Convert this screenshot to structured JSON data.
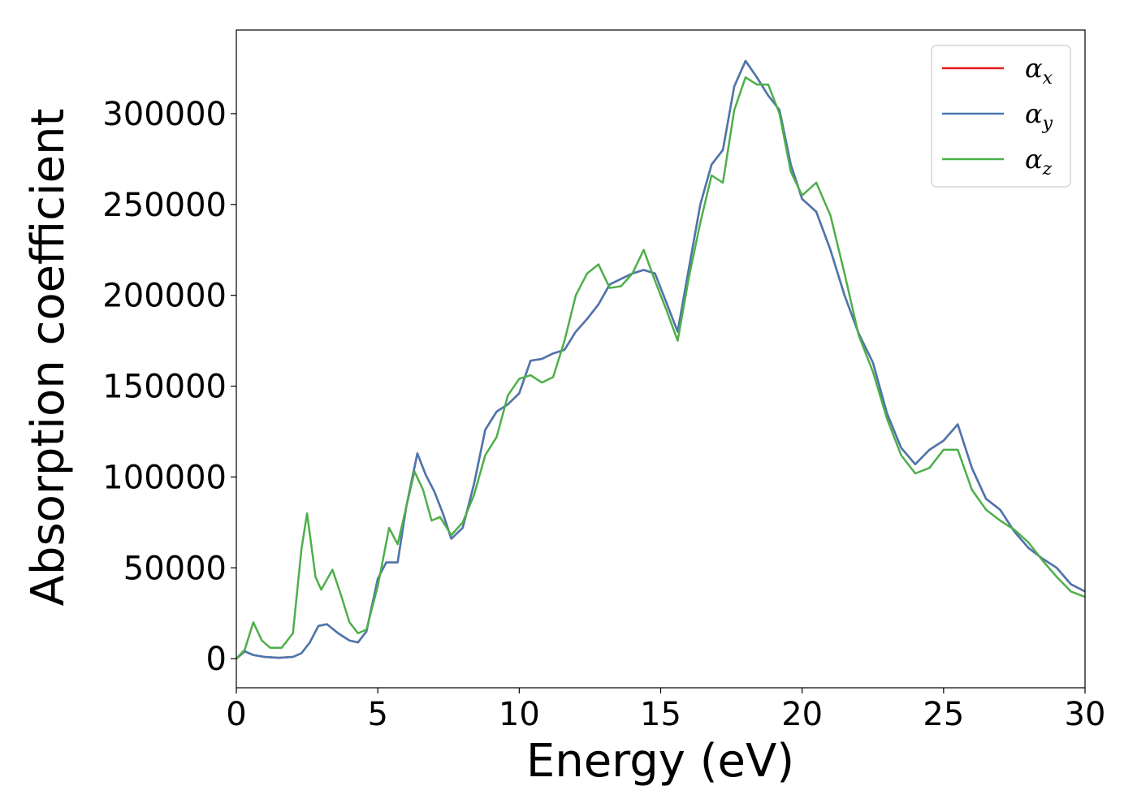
{
  "chart_data": {
    "type": "line",
    "xlabel": "Energy (eV)",
    "ylabel": "Absorption coefficient",
    "xlim": [
      0,
      30
    ],
    "ylim": [
      -16000,
      346000
    ],
    "xticks": [
      0,
      5,
      10,
      15,
      20,
      25,
      30
    ],
    "yticks": [
      0,
      50000,
      100000,
      150000,
      200000,
      250000,
      300000
    ],
    "grid": false,
    "legend_position": "top-right",
    "series": [
      {
        "name": "α",
        "subscript": "x",
        "color": "#e41a1c",
        "x": [
          0,
          0.3,
          0.6,
          1.0,
          1.5,
          2.0,
          2.3,
          2.6,
          2.9,
          3.2,
          3.6,
          4.0,
          4.3,
          4.6,
          5.0,
          5.3,
          5.7,
          6.0,
          6.4,
          6.7,
          7.0,
          7.3,
          7.6,
          8.0,
          8.4,
          8.8,
          9.2,
          9.6,
          10.0,
          10.4,
          10.8,
          11.2,
          11.6,
          12.0,
          12.4,
          12.8,
          13.2,
          13.6,
          14.0,
          14.4,
          14.8,
          15.2,
          15.6,
          16.0,
          16.4,
          16.8,
          17.2,
          17.6,
          18.0,
          18.4,
          18.8,
          19.2,
          19.6,
          20.0,
          20.5,
          21.0,
          21.5,
          22.0,
          22.5,
          23.0,
          23.5,
          24.0,
          24.5,
          25.0,
          25.5,
          26.0,
          26.5,
          27.0,
          27.5,
          28.0,
          28.5,
          29.0,
          29.5,
          30.0
        ],
        "y": [
          0,
          4000,
          2000,
          1000,
          500,
          1000,
          3000,
          9000,
          18000,
          19000,
          14000,
          10000,
          9000,
          15000,
          44000,
          53000,
          53000,
          83000,
          113000,
          101000,
          92000,
          80000,
          66000,
          72000,
          96000,
          126000,
          136000,
          140000,
          146000,
          164000,
          165000,
          168000,
          170000,
          180000,
          187000,
          195000,
          206000,
          209000,
          212000,
          214000,
          212000,
          196000,
          180000,
          215000,
          250000,
          272000,
          280000,
          315000,
          329000,
          320000,
          310000,
          302000,
          272000,
          253000,
          246000,
          225000,
          200000,
          179000,
          163000,
          135000,
          116000,
          107000,
          115000,
          120000,
          129000,
          105000,
          88000,
          82000,
          70000,
          61000,
          55000,
          50000,
          41000,
          37000
        ]
      },
      {
        "name": "α",
        "subscript": "y",
        "color": "#4878b0",
        "x": [
          0,
          0.3,
          0.6,
          1.0,
          1.5,
          2.0,
          2.3,
          2.6,
          2.9,
          3.2,
          3.6,
          4.0,
          4.3,
          4.6,
          5.0,
          5.3,
          5.7,
          6.0,
          6.4,
          6.7,
          7.0,
          7.3,
          7.6,
          8.0,
          8.4,
          8.8,
          9.2,
          9.6,
          10.0,
          10.4,
          10.8,
          11.2,
          11.6,
          12.0,
          12.4,
          12.8,
          13.2,
          13.6,
          14.0,
          14.4,
          14.8,
          15.2,
          15.6,
          16.0,
          16.4,
          16.8,
          17.2,
          17.6,
          18.0,
          18.4,
          18.8,
          19.2,
          19.6,
          20.0,
          20.5,
          21.0,
          21.5,
          22.0,
          22.5,
          23.0,
          23.5,
          24.0,
          24.5,
          25.0,
          25.5,
          26.0,
          26.5,
          27.0,
          27.5,
          28.0,
          28.5,
          29.0,
          29.5,
          30.0
        ],
        "y": [
          0,
          4000,
          2000,
          1000,
          500,
          1000,
          3000,
          9000,
          18000,
          19000,
          14000,
          10000,
          9000,
          15000,
          44000,
          53000,
          53000,
          83000,
          113000,
          101000,
          92000,
          80000,
          66000,
          72000,
          96000,
          126000,
          136000,
          140000,
          146000,
          164000,
          165000,
          168000,
          170000,
          180000,
          187000,
          195000,
          206000,
          209000,
          212000,
          214000,
          212000,
          196000,
          180000,
          215000,
          250000,
          272000,
          280000,
          315000,
          329000,
          320000,
          310000,
          302000,
          272000,
          253000,
          246000,
          225000,
          200000,
          179000,
          163000,
          135000,
          116000,
          107000,
          115000,
          120000,
          129000,
          105000,
          88000,
          82000,
          70000,
          61000,
          55000,
          50000,
          41000,
          37000
        ]
      },
      {
        "name": "α",
        "subscript": "z",
        "color": "#4daf4a",
        "x": [
          0,
          0.3,
          0.6,
          0.9,
          1.2,
          1.6,
          2.0,
          2.3,
          2.5,
          2.8,
          3.0,
          3.4,
          3.7,
          4.0,
          4.3,
          4.6,
          5.0,
          5.4,
          5.7,
          6.0,
          6.3,
          6.6,
          6.9,
          7.2,
          7.6,
          8.0,
          8.4,
          8.8,
          9.2,
          9.6,
          10.0,
          10.4,
          10.8,
          11.2,
          11.6,
          12.0,
          12.4,
          12.8,
          13.2,
          13.6,
          14.0,
          14.4,
          14.8,
          15.2,
          15.6,
          16.0,
          16.4,
          16.8,
          17.2,
          17.6,
          18.0,
          18.4,
          18.8,
          19.2,
          19.6,
          20.0,
          20.5,
          21.0,
          21.5,
          22.0,
          22.5,
          23.0,
          23.5,
          24.0,
          24.5,
          25.0,
          25.5,
          26.0,
          26.5,
          27.0,
          27.5,
          28.0,
          28.5,
          29.0,
          29.5,
          30.0
        ],
        "y": [
          0,
          5000,
          20000,
          10000,
          6000,
          6000,
          14000,
          60000,
          80000,
          45000,
          38000,
          49000,
          35000,
          20000,
          14000,
          16000,
          40000,
          72000,
          63000,
          83000,
          103000,
          93000,
          76000,
          78000,
          68000,
          75000,
          90000,
          112000,
          122000,
          145000,
          154000,
          156000,
          152000,
          155000,
          175000,
          200000,
          212000,
          217000,
          204000,
          205000,
          212000,
          225000,
          208000,
          192000,
          175000,
          210000,
          240000,
          266000,
          262000,
          302000,
          320000,
          316000,
          316000,
          300000,
          268000,
          255000,
          262000,
          244000,
          212000,
          178000,
          158000,
          132000,
          112000,
          102000,
          105000,
          115000,
          115000,
          93000,
          82000,
          76000,
          71000,
          64000,
          54000,
          45000,
          37000,
          34000
        ]
      }
    ]
  }
}
